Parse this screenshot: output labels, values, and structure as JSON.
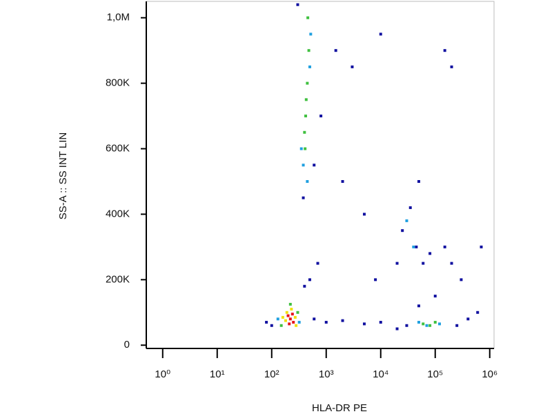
{
  "chart_data": {
    "type": "scatter",
    "xlabel": "HLA-DR PE",
    "ylabel": "SS-A :: SS INT LIN",
    "xscale": "log",
    "xlim": [
      0.5,
      1200000
    ],
    "xticks": [
      {
        "value": 1,
        "label": "10⁰"
      },
      {
        "value": 10,
        "label": "10¹"
      },
      {
        "value": 100,
        "label": "10²"
      },
      {
        "value": 1000,
        "label": "10³"
      },
      {
        "value": 10000,
        "label": "10⁴"
      },
      {
        "value": 100000,
        "label": "10⁵"
      },
      {
        "value": 1000000,
        "label": "10⁶"
      }
    ],
    "ylim": [
      -10000,
      1050000
    ],
    "yticks": [
      0,
      {
        "value": 200000,
        "label": "200K"
      },
      {
        "value": 400000,
        "label": "400K"
      },
      {
        "value": 600000,
        "label": "600K"
      },
      {
        "value": 800000,
        "label": "800K"
      },
      {
        "value": 1000000,
        "label": "1,0M"
      }
    ],
    "series": [
      {
        "color": "#1010a0",
        "x": [
          600,
          1000,
          2000,
          5000,
          100,
          80,
          400,
          500,
          700,
          380,
          600,
          800,
          1500,
          3000,
          300,
          20000,
          25000,
          35000,
          45000,
          60000,
          80000,
          150000,
          200000,
          300000,
          100000,
          50000,
          400000,
          250000,
          10000,
          30000,
          8000,
          50000,
          200000,
          150000,
          10000,
          5000,
          700000,
          600000,
          20000,
          2000
        ],
        "values": [
          80000,
          70000,
          75000,
          65000,
          60000,
          70000,
          180000,
          200000,
          250000,
          450000,
          550000,
          700000,
          900000,
          850000,
          1040000,
          250000,
          350000,
          420000,
          300000,
          250000,
          280000,
          300000,
          250000,
          200000,
          150000,
          120000,
          80000,
          60000,
          70000,
          60000,
          200000,
          500000,
          850000,
          900000,
          950000,
          400000,
          300000,
          100000,
          50000,
          500000
        ]
      },
      {
        "color": "#20a0e0",
        "x": [
          130,
          320,
          350,
          500,
          380,
          520,
          450,
          40000,
          30000,
          70000,
          120000,
          50000
        ],
        "values": [
          80000,
          70000,
          600000,
          850000,
          550000,
          950000,
          500000,
          300000,
          380000,
          60000,
          65000,
          70000
        ]
      },
      {
        "color": "#40c040",
        "x": [
          150,
          300,
          220,
          420,
          450,
          400,
          480,
          430,
          460,
          410,
          60000,
          80000,
          100000
        ],
        "values": [
          60000,
          100000,
          125000,
          700000,
          800000,
          650000,
          900000,
          750000,
          1000000,
          600000,
          65000,
          60000,
          70000
        ]
      },
      {
        "color": "#f0e010",
        "x": [
          180,
          270,
          230,
          190,
          280,
          160
        ],
        "values": [
          75000,
          85000,
          110000,
          100000,
          60000,
          85000
        ]
      },
      {
        "color": "#e8141a",
        "x": [
          220,
          250,
          200,
          240,
          210
        ],
        "values": [
          80000,
          70000,
          90000,
          95000,
          65000
        ]
      }
    ]
  }
}
